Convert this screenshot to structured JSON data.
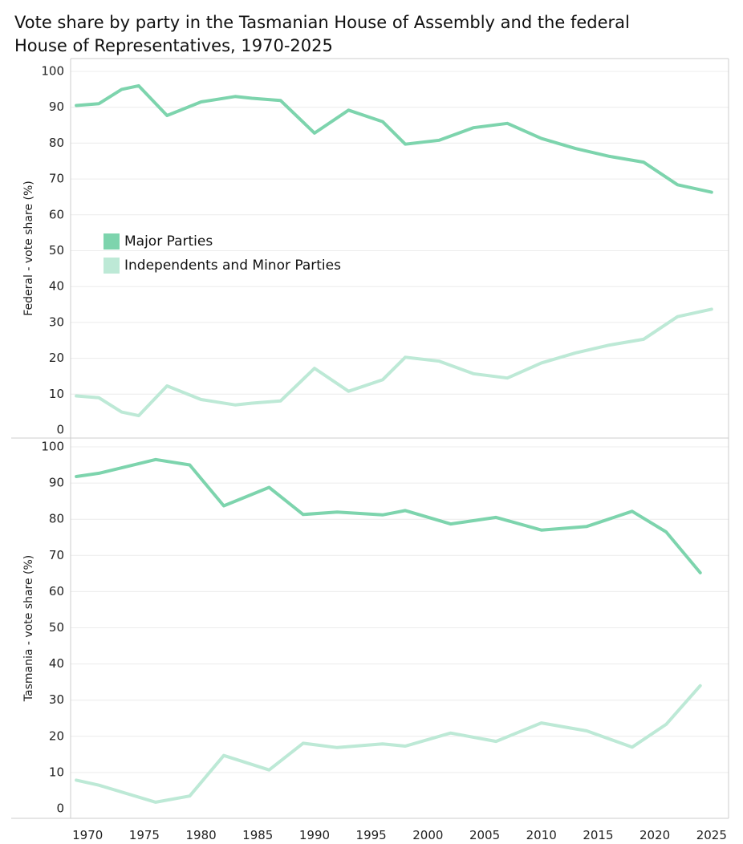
{
  "title_line1": "Vote share by party in the Tasmanian House of Assembly and the federal",
  "title_line2": "House of Representatives, 1970-2025",
  "colors": {
    "major": "#7dd4ad",
    "minor": "#bde9d6",
    "grid": "#ececec",
    "frame": "#cccccc"
  },
  "legend": [
    {
      "label": "Major Parties",
      "series": "major"
    },
    {
      "label": "Independents and Minor Parties",
      "series": "minor"
    }
  ],
  "chart_data": [
    {
      "type": "line",
      "panel": "top",
      "ylabel": "Federal - vote share (%)",
      "ylim": [
        0,
        100
      ],
      "xlim": [
        1968.5,
        2026.5
      ],
      "yticks": [
        0,
        10,
        20,
        30,
        40,
        50,
        60,
        70,
        80,
        90,
        100
      ],
      "grid": true,
      "legend_position": "middle-left",
      "series": [
        {
          "name": "Major Parties",
          "color": "major",
          "points": [
            [
              1969,
              90.5
            ],
            [
              1971,
              91
            ],
            [
              1973,
              95
            ],
            [
              1974.5,
              96
            ],
            [
              1977,
              87.7
            ],
            [
              1980,
              91.5
            ],
            [
              1983,
              93
            ],
            [
              1984.5,
              92.5
            ],
            [
              1987,
              91.9
            ],
            [
              1990,
              82.8
            ],
            [
              1993,
              89.2
            ],
            [
              1996,
              86
            ],
            [
              1998,
              79.7
            ],
            [
              2001,
              80.8
            ],
            [
              2004,
              84.3
            ],
            [
              2007,
              85.5
            ],
            [
              2010,
              81.3
            ],
            [
              2013,
              78.5
            ],
            [
              2016,
              76.3
            ],
            [
              2019,
              74.7
            ],
            [
              2022,
              68.4
            ],
            [
              2025,
              66.3
            ]
          ]
        },
        {
          "name": "Independents and Minor Parties",
          "color": "minor",
          "points": [
            [
              1969,
              9.5
            ],
            [
              1971,
              9
            ],
            [
              1973,
              5
            ],
            [
              1974.5,
              4
            ],
            [
              1977,
              12.3
            ],
            [
              1980,
              8.5
            ],
            [
              1983,
              7
            ],
            [
              1984.5,
              7.5
            ],
            [
              1987,
              8.1
            ],
            [
              1990,
              17.2
            ],
            [
              1993,
              10.8
            ],
            [
              1996,
              14
            ],
            [
              1998,
              20.3
            ],
            [
              2001,
              19.2
            ],
            [
              2004,
              15.7
            ],
            [
              2007,
              14.5
            ],
            [
              2010,
              18.7
            ],
            [
              2013,
              21.5
            ],
            [
              2016,
              23.7
            ],
            [
              2019,
              25.3
            ],
            [
              2022,
              31.6
            ],
            [
              2025,
              33.7
            ]
          ]
        }
      ]
    },
    {
      "type": "line",
      "panel": "bottom",
      "ylabel": "Tasmania - vote share (%)",
      "xlabel": "",
      "ylim": [
        0,
        100
      ],
      "xlim": [
        1968.5,
        2026.5
      ],
      "yticks": [
        0,
        10,
        20,
        30,
        40,
        50,
        60,
        70,
        80,
        90,
        100
      ],
      "xticks": [
        1970,
        1975,
        1980,
        1985,
        1990,
        1995,
        2000,
        2005,
        2010,
        2015,
        2020,
        2025
      ],
      "grid": true,
      "series": [
        {
          "name": "Major Parties",
          "color": "major",
          "points": [
            [
              1969,
              91.8
            ],
            [
              1971,
              92.7
            ],
            [
              1976,
              96.5
            ],
            [
              1979,
              95
            ],
            [
              1982,
              83.7
            ],
            [
              1986,
              88.8
            ],
            [
              1989,
              81.3
            ],
            [
              1992,
              82
            ],
            [
              1996,
              81.2
            ],
            [
              1998,
              82.4
            ],
            [
              2002,
              78.7
            ],
            [
              2006,
              80.5
            ],
            [
              2010,
              77
            ],
            [
              2014,
              78
            ],
            [
              2018,
              82.2
            ],
            [
              2021,
              76.5
            ],
            [
              2024,
              65.2
            ]
          ]
        },
        {
          "name": "Independents and Minor Parties",
          "color": "minor",
          "points": [
            [
              1969,
              7.9
            ],
            [
              1971,
              6.5
            ],
            [
              1976,
              1.8
            ],
            [
              1979,
              3.5
            ],
            [
              1982,
              14.7
            ],
            [
              1986,
              10.7
            ],
            [
              1989,
              18.1
            ],
            [
              1992,
              16.9
            ],
            [
              1996,
              17.9
            ],
            [
              1998,
              17.3
            ],
            [
              2002,
              20.9
            ],
            [
              2006,
              18.6
            ],
            [
              2010,
              23.7
            ],
            [
              2014,
              21.5
            ],
            [
              2018,
              17
            ],
            [
              2021,
              23.3
            ],
            [
              2024,
              34
            ]
          ]
        }
      ]
    }
  ]
}
